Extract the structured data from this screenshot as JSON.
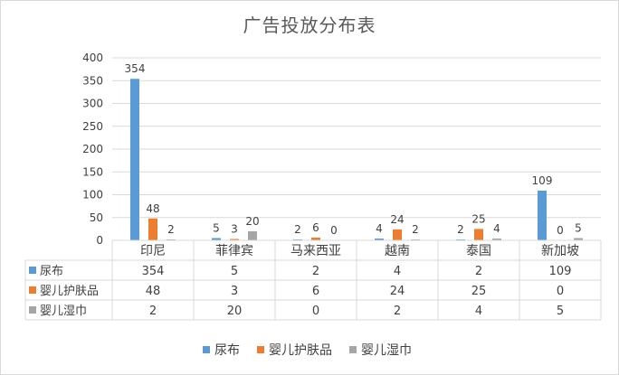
{
  "chart_data": {
    "type": "bar",
    "title": "广告投放分布表",
    "categories": [
      "印尼",
      "菲律宾",
      "马来西亚",
      "越南",
      "泰国",
      "新加坡"
    ],
    "series": [
      {
        "name": "尿布",
        "values": [
          354,
          5,
          2,
          4,
          2,
          109
        ],
        "color": "#5b9bd5"
      },
      {
        "name": "婴儿护肤品",
        "values": [
          48,
          3,
          6,
          24,
          25,
          0
        ],
        "color": "#ed7d31"
      },
      {
        "name": "婴儿湿巾",
        "values": [
          2,
          20,
          0,
          2,
          4,
          5
        ],
        "color": "#a5a5a5"
      }
    ],
    "ylim": [
      0,
      400
    ],
    "yticks": [
      0,
      50,
      100,
      150,
      200,
      250,
      300,
      350,
      400
    ],
    "grid": true,
    "legend": "bottom",
    "data_table": true
  }
}
